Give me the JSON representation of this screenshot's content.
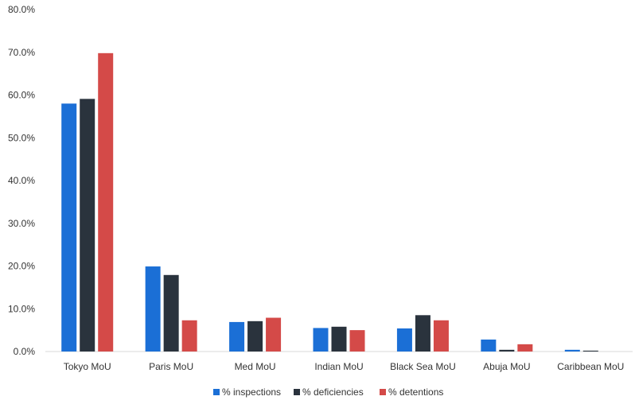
{
  "chart_data": {
    "type": "bar",
    "title": "",
    "xlabel": "",
    "ylabel": "",
    "ylim": [
      0,
      80
    ],
    "y_ticks": [
      "0.0%",
      "10.0%",
      "20.0%",
      "30.0%",
      "40.0%",
      "50.0%",
      "60.0%",
      "70.0%",
      "80.0%"
    ],
    "grid": false,
    "legend_position": "bottom",
    "categories": [
      "Tokyo MoU",
      "Paris MoU",
      "Med MoU",
      "Indian MoU",
      "Black Sea MoU",
      "Abuja MoU",
      "Caribbean MoU"
    ],
    "series": [
      {
        "name": "% inspections",
        "color": "#1b6fd6",
        "values": [
          58.0,
          19.9,
          6.9,
          5.5,
          5.4,
          2.8,
          0.4
        ]
      },
      {
        "name": "% deficiencies",
        "color": "#2a333d",
        "values": [
          59.1,
          17.9,
          7.1,
          5.8,
          8.5,
          0.4,
          0.2
        ]
      },
      {
        "name": "% detentions",
        "color": "#d44a48",
        "values": [
          69.8,
          7.3,
          7.9,
          5.0,
          7.3,
          1.7,
          0.0
        ]
      }
    ]
  }
}
